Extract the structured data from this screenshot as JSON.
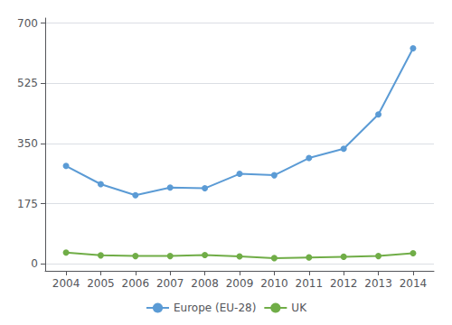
{
  "chart_data": {
    "type": "line",
    "x": [
      2004,
      2005,
      2006,
      2007,
      2008,
      2009,
      2010,
      2011,
      2012,
      2013,
      2014
    ],
    "series": [
      {
        "name": "Europe (EU-28)",
        "color": "#5b9bd5",
        "values": [
          285,
          232,
          200,
          222,
          220,
          262,
          258,
          308,
          335,
          435,
          627
        ]
      },
      {
        "name": "UK",
        "color": "#70ad47",
        "values": [
          33,
          25,
          23,
          23,
          26,
          22,
          17,
          19,
          21,
          23,
          31
        ]
      }
    ],
    "xlim": [
      2003.4,
      2014.6
    ],
    "xticks": [
      2004,
      2005,
      2006,
      2007,
      2008,
      2009,
      2010,
      2011,
      2012,
      2013,
      2014
    ],
    "ylim": [
      -20,
      715
    ],
    "yticks": [
      0,
      175,
      350,
      525,
      700
    ],
    "grid": true,
    "legend": "bottom",
    "marker": "circle"
  }
}
